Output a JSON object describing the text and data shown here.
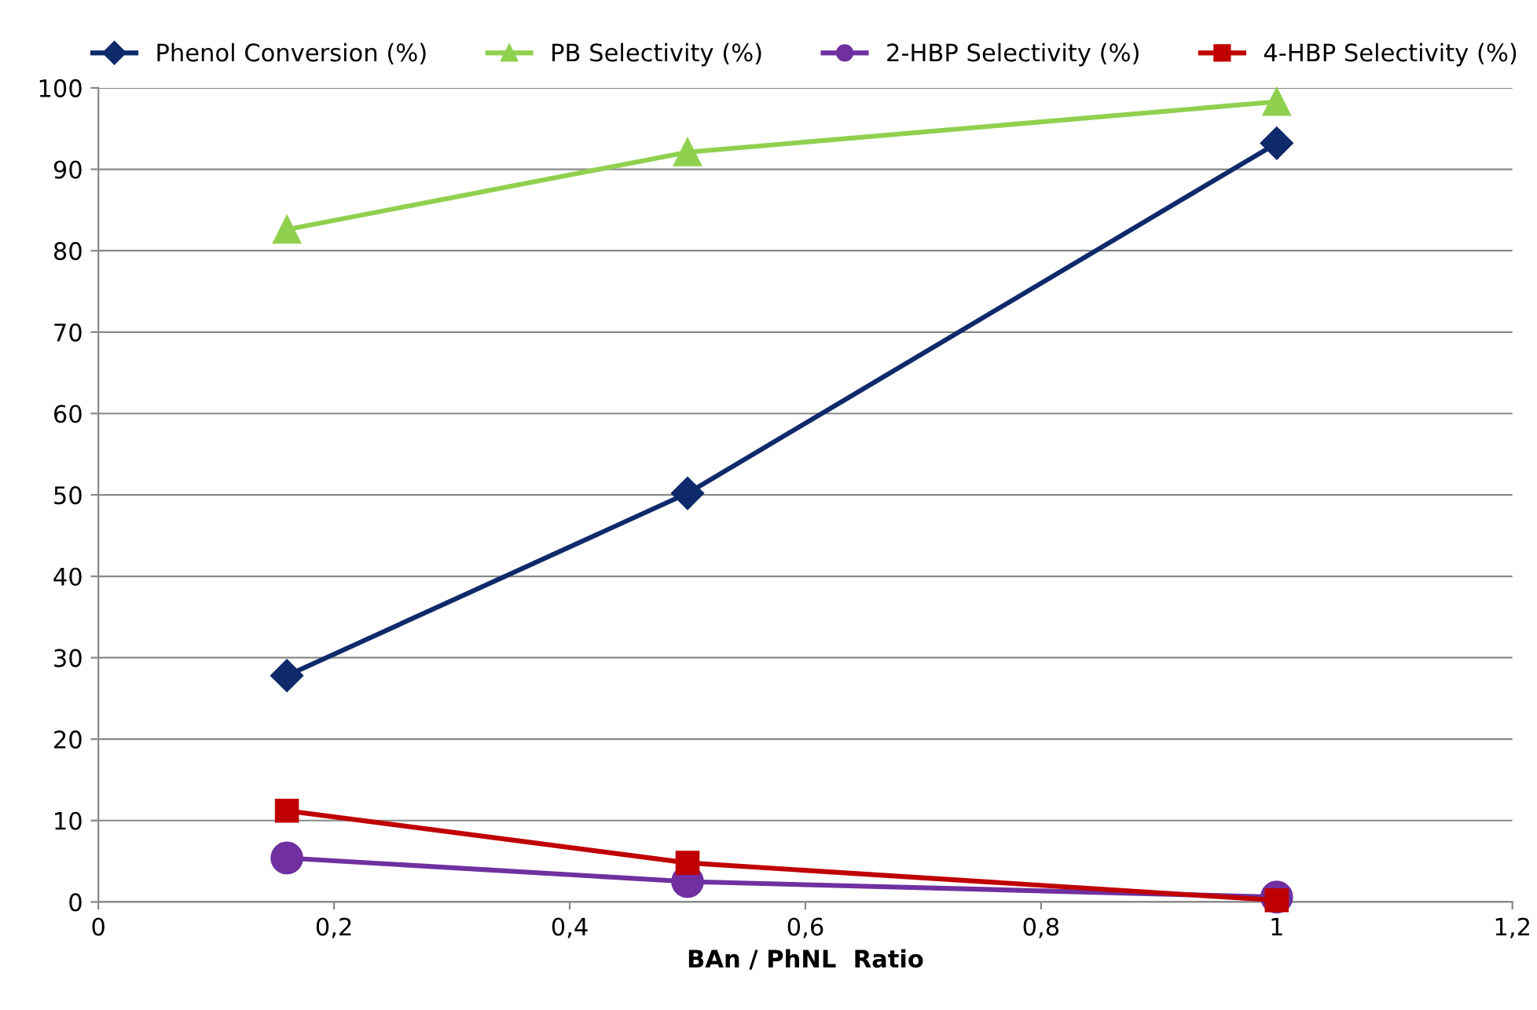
{
  "chart_data": {
    "type": "line",
    "xlabel": "BAn / PhNL  Ratio",
    "x": [
      0.16,
      0.5,
      1
    ],
    "series": [
      {
        "name": "Phenol Conversion (%)",
        "color": "#0f2a6b",
        "marker": "diamond",
        "values": [
          27.8,
          50.2,
          93.2
        ]
      },
      {
        "name": "PB Selectivity (%)",
        "color": "#8fd14f",
        "marker": "triangle",
        "values": [
          82.6,
          92.1,
          98.3
        ]
      },
      {
        "name": "2-HBP Selectivity (%)",
        "color": "#7030a0",
        "marker": "circle",
        "values": [
          5.4,
          2.5,
          0.6
        ]
      },
      {
        "name": "4-HBP Selectivity (%)",
        "color": "#c00000",
        "marker": "square",
        "values": [
          11.2,
          4.8,
          0.2
        ]
      }
    ],
    "xlim": [
      0,
      1.2
    ],
    "xticks": [
      0,
      {
        "value": 0.2,
        "label": "0,2"
      },
      {
        "value": 0.4,
        "label": "0,4"
      },
      {
        "value": 0.6,
        "label": "0,6"
      },
      {
        "value": 0.8,
        "label": "0,8"
      },
      1,
      {
        "value": 1.2,
        "label": "1,2"
      }
    ],
    "ylim": [
      0,
      100
    ],
    "yticks": [
      0,
      10,
      20,
      30,
      40,
      50,
      60,
      70,
      80,
      90,
      100
    ],
    "grid": "y",
    "legend": "top",
    "line_style": "solid"
  }
}
